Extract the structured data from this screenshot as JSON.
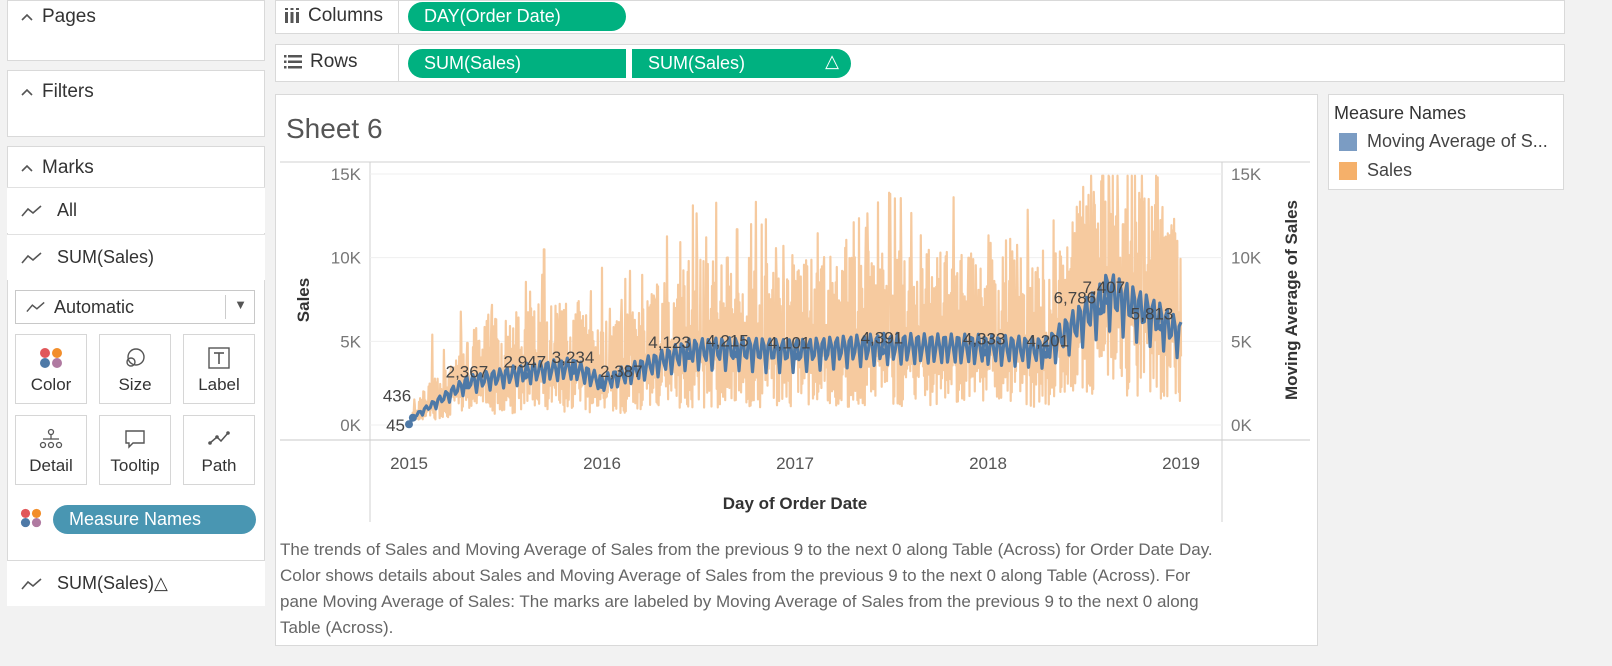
{
  "left_panel": {
    "pages_label": "Pages",
    "filters_label": "Filters",
    "marks_label": "Marks",
    "marks_rows": [
      "All",
      "SUM(Sales)"
    ],
    "mark_type": "Automatic",
    "buttons": [
      "Color",
      "Size",
      "Label",
      "Detail",
      "Tooltip",
      "Path"
    ],
    "color_pill": "Measure Names",
    "second_mark": "SUM(Sales)△"
  },
  "shelves": {
    "columns_label": "Columns",
    "columns_pill": "DAY(Order Date)",
    "rows_label": "Rows",
    "rows_pills": [
      "SUM(Sales)",
      "SUM(Sales)"
    ],
    "rows_pill2_delta": "△"
  },
  "sheet": {
    "title": "Sheet 6",
    "caption": "The trends of Sales and Moving Average of Sales from the previous 9 to the next 0 along Table (Across) for Order Date Day.  Color shows details about Sales and Moving Average of Sales from the previous 9 to the next 0 along Table (Across).  For pane Moving Average of Sales:  The marks are labeled by Moving Average of Sales from the previous 9 to the next 0 along Table (Across)."
  },
  "legend": {
    "title": "Measure Names",
    "items": [
      {
        "label": "Moving Average of S...",
        "color": "#7b9cc3"
      },
      {
        "label": "Sales",
        "color": "#f5b06a"
      }
    ]
  },
  "icons": {
    "pages": "chevron-up-icon",
    "filters": "chevron-up-icon",
    "marks": "chevron-up-icon",
    "all": "line-chart-icon",
    "columns": "columns-icon",
    "rows": "rows-icon",
    "color": "color-dots-icon",
    "size": "size-icon",
    "label": "label-icon",
    "detail": "detail-icon",
    "tooltip": "tooltip-icon",
    "path": "path-icon"
  },
  "chart_data": {
    "type": "line",
    "x": [
      "2015",
      "2016",
      "2017",
      "2018",
      "2019"
    ],
    "xlabel": "Day of Order Date",
    "ylabel": "Sales",
    "ylabel_right": "Moving Average of Sales",
    "y_ticks": [
      "15K",
      "10K",
      "5K",
      "0K"
    ],
    "y_ticks_right": [
      "15K",
      "10K",
      "5K",
      "0K"
    ],
    "ylim": [
      0,
      15000
    ],
    "series": [
      {
        "name": "Sales",
        "color": "#f5c79a",
        "peaks": [
          {
            "x": 2015.12,
            "y": 5400
          },
          {
            "x": 2015.7,
            "y": 10500
          },
          {
            "x": 2016.0,
            "y": 9400
          },
          {
            "x": 2016.45,
            "y": 9800
          },
          {
            "x": 2016.7,
            "y": 11700
          },
          {
            "x": 2016.85,
            "y": 12300
          },
          {
            "x": 2017.43,
            "y": 13300
          },
          {
            "x": 2017.9,
            "y": 10000
          },
          {
            "x": 2018.55,
            "y": 12700
          },
          {
            "x": 2018.7,
            "y": 12000
          },
          {
            "x": 2018.88,
            "y": 14800
          },
          {
            "x": 2018.98,
            "y": 11000
          }
        ]
      },
      {
        "name": "Moving Average of Sales",
        "color": "#4e79a7",
        "points": [
          {
            "x": 2015.0,
            "y": 45
          },
          {
            "x": 2015.02,
            "y": 436
          },
          {
            "x": 2015.3,
            "y": 2367
          },
          {
            "x": 2015.6,
            "y": 2947
          },
          {
            "x": 2015.85,
            "y": 3234
          },
          {
            "x": 2016.0,
            "y": 2387
          },
          {
            "x": 2016.45,
            "y": 4123
          },
          {
            "x": 2016.7,
            "y": 4215
          },
          {
            "x": 2017.0,
            "y": 4101
          },
          {
            "x": 2017.45,
            "y": 4391
          },
          {
            "x": 2017.98,
            "y": 4333
          },
          {
            "x": 2018.3,
            "y": 4201
          },
          {
            "x": 2018.58,
            "y": 6786
          },
          {
            "x": 2018.62,
            "y": 7407
          },
          {
            "x": 2018.9,
            "y": 5813
          },
          {
            "x": 2019.0,
            "y": 5000
          }
        ]
      }
    ],
    "data_labels": [
      {
        "text": "436",
        "x": 2015.0,
        "y": 436
      },
      {
        "text": "45",
        "x": 2015.0,
        "y": 45
      },
      {
        "text": "2,367",
        "x": 2015.3,
        "y": 2367
      },
      {
        "text": "2,947",
        "x": 2015.6,
        "y": 2947
      },
      {
        "text": "3,234",
        "x": 2015.85,
        "y": 3234
      },
      {
        "text": "2,387",
        "x": 2016.1,
        "y": 2387
      },
      {
        "text": "4,123",
        "x": 2016.35,
        "y": 4123
      },
      {
        "text": "4,215",
        "x": 2016.65,
        "y": 4215
      },
      {
        "text": "4,101",
        "x": 2016.97,
        "y": 4101
      },
      {
        "text": "4,391",
        "x": 2017.45,
        "y": 4391
      },
      {
        "text": "4,333",
        "x": 2017.98,
        "y": 4333
      },
      {
        "text": "4,201",
        "x": 2018.31,
        "y": 4201
      },
      {
        "text": "6,786",
        "x": 2018.45,
        "y": 6786
      },
      {
        "text": "7,407",
        "x": 2018.6,
        "y": 7407
      },
      {
        "text": "5,813",
        "x": 2018.85,
        "y": 5813
      }
    ],
    "grid": true,
    "legend_position": "right"
  }
}
